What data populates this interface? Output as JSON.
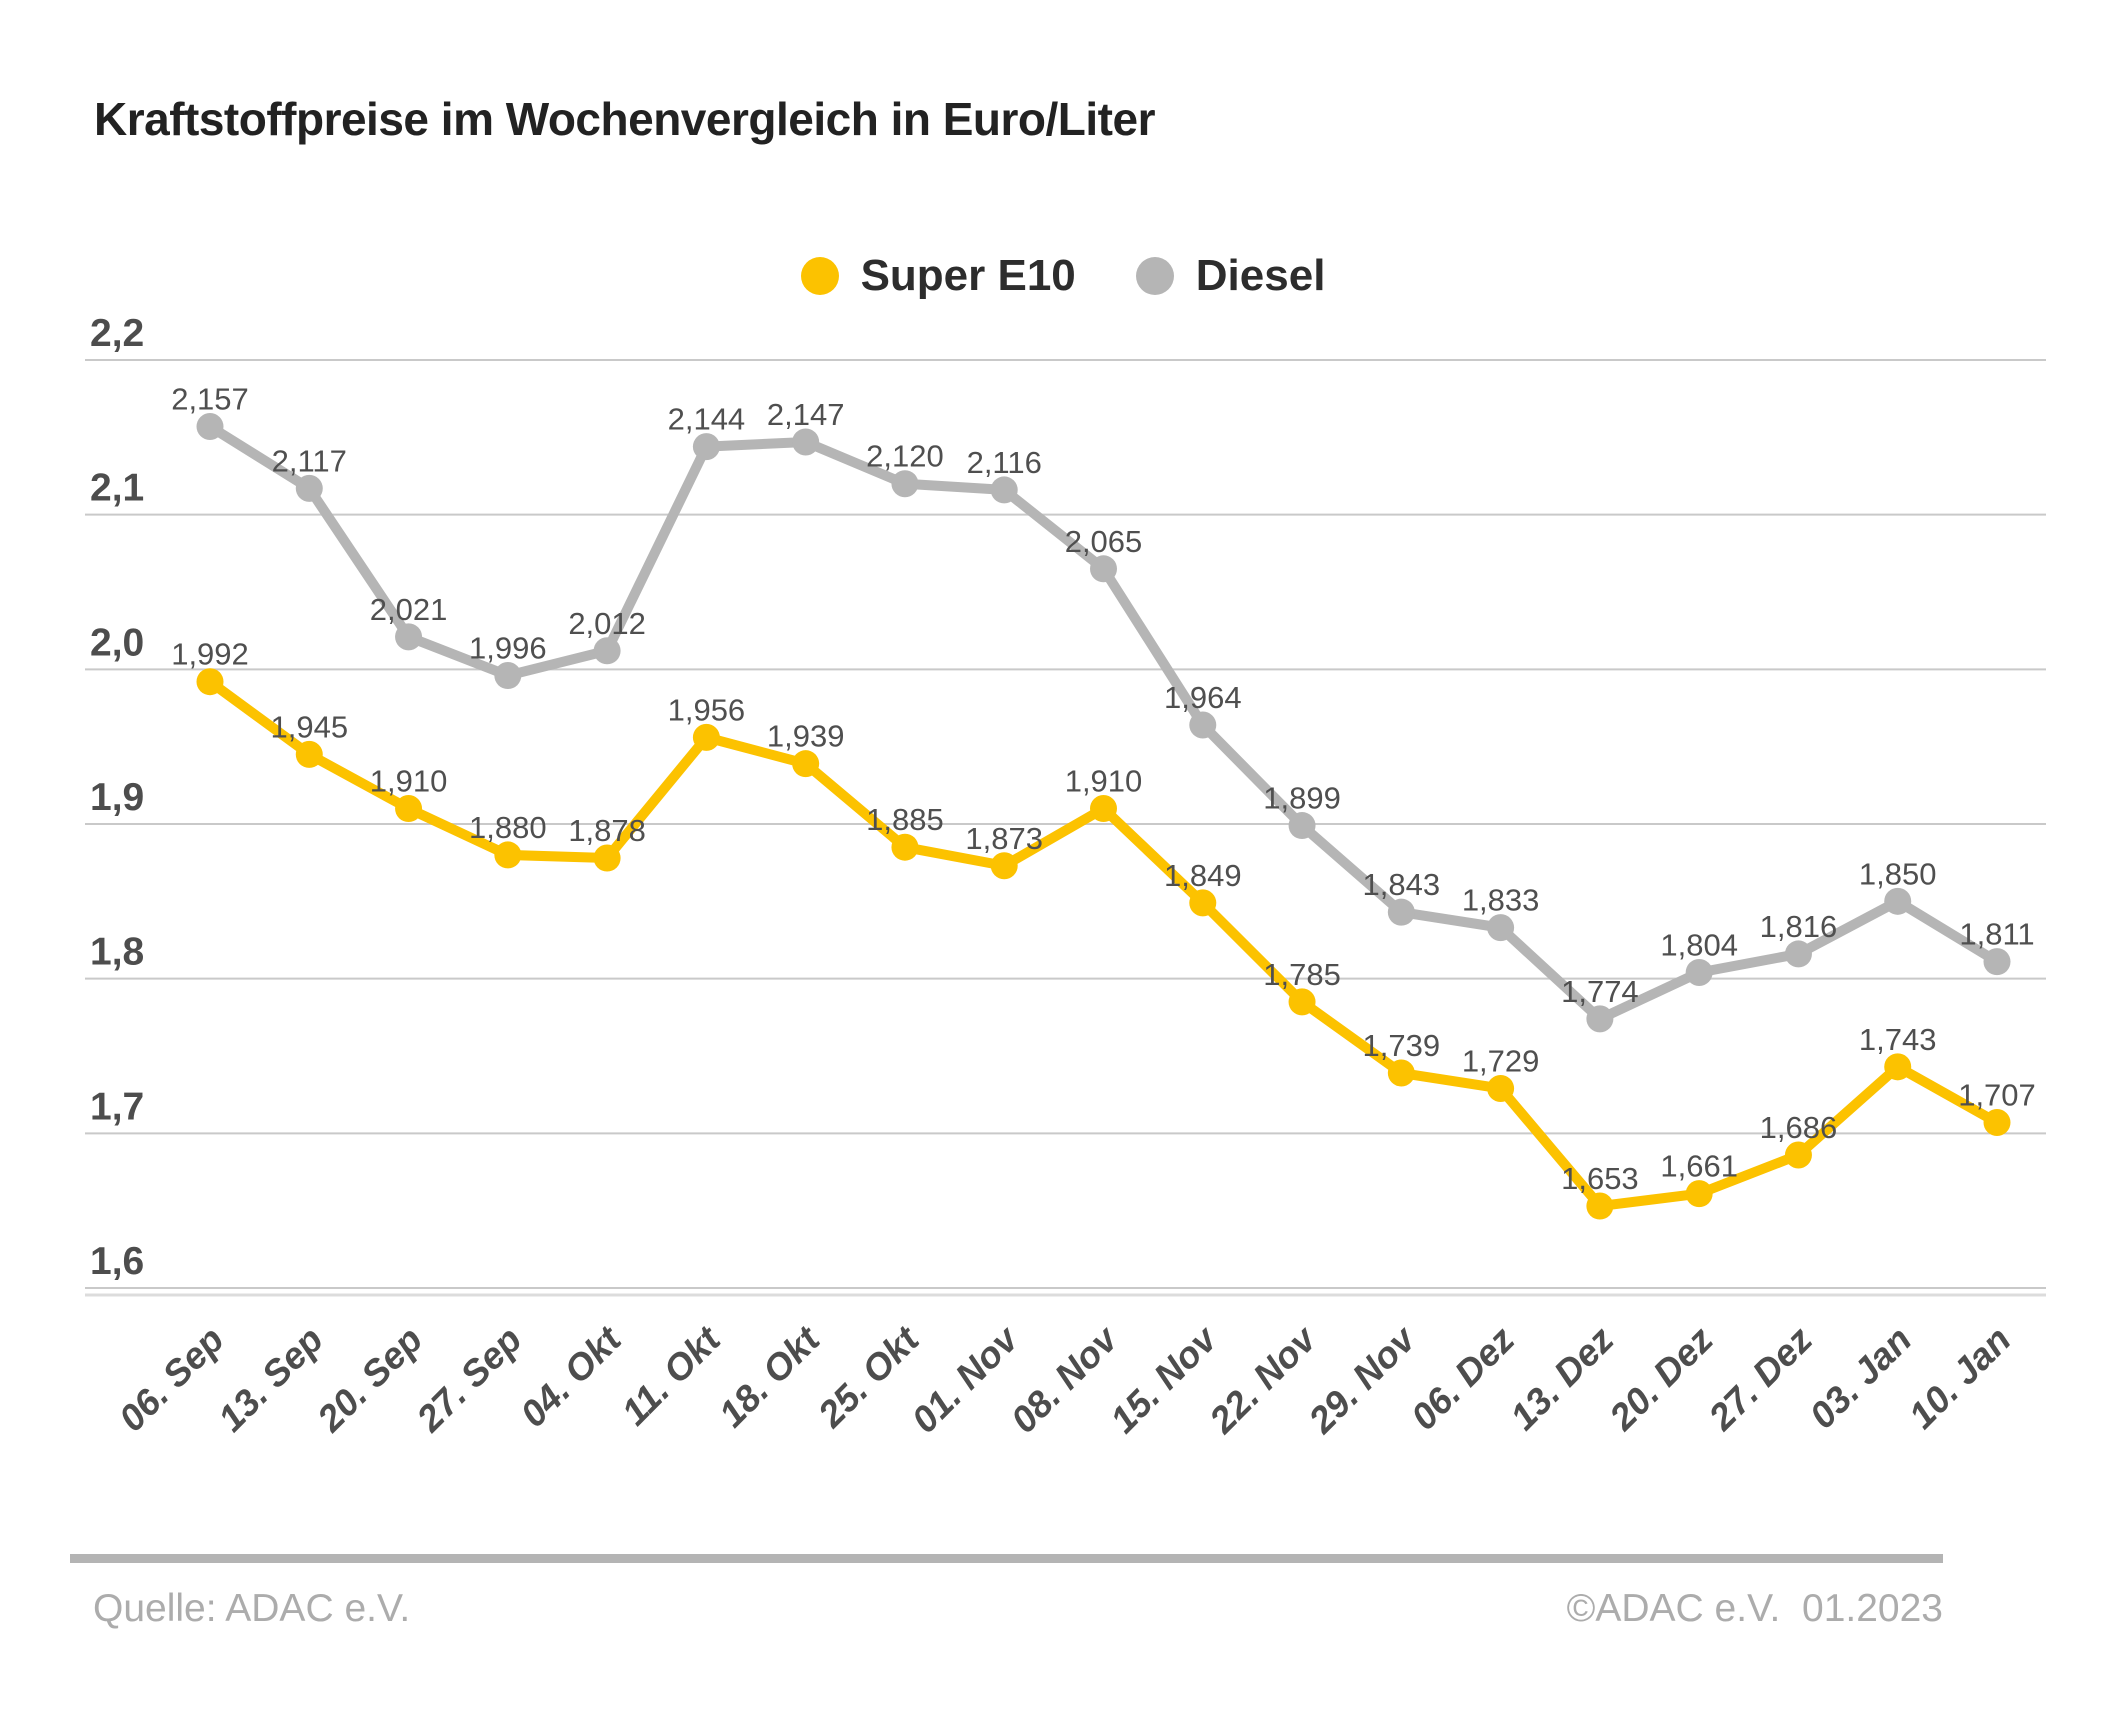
{
  "title": "Kraftstoffpreise im Wochenvergleich in Euro/Liter",
  "footer": {
    "source": "Quelle: ADAC e.V.",
    "copyright": "©ADAC e.V.  01.2023"
  },
  "colors": {
    "super_e10": "#FCC200",
    "diesel": "#B5B5B5",
    "gridline": "#C9C9C9",
    "label_text": "#4D4D4D",
    "footer_gray": "#ACACAC"
  },
  "chart_data": {
    "type": "line",
    "title": "Kraftstoffpreise im Wochenvergleich in Euro/Liter",
    "xlabel": "",
    "ylabel": "Euro/Liter",
    "ylim": [
      1.6,
      2.2
    ],
    "yticks": [
      2.2,
      2.1,
      2.0,
      1.9,
      1.8,
      1.7,
      1.6
    ],
    "grid": true,
    "legend_position": "top-center",
    "value_labels": true,
    "decimal_separator": ",",
    "categories": [
      "06. Sep",
      "13. Sep",
      "20. Sep",
      "27. Sep",
      "04. Okt",
      "11. Okt",
      "18. Okt",
      "25. Okt",
      "01. Nov",
      "08. Nov",
      "15. Nov",
      "22. Nov",
      "29. Nov",
      "06. Dez",
      "13. Dez",
      "20. Dez",
      "27. Dez",
      "03. Jan",
      "10. Jan"
    ],
    "series": [
      {
        "name": "Super E10",
        "color": "#FCC200",
        "values": [
          1.992,
          1.945,
          1.91,
          1.88,
          1.878,
          1.956,
          1.939,
          1.885,
          1.873,
          1.91,
          1.849,
          1.785,
          1.739,
          1.729,
          1.653,
          1.661,
          1.686,
          1.743,
          1.707
        ]
      },
      {
        "name": "Diesel",
        "color": "#B5B5B5",
        "values": [
          2.157,
          2.117,
          2.021,
          1.996,
          2.012,
          2.144,
          2.147,
          2.12,
          2.116,
          2.065,
          1.964,
          1.899,
          1.843,
          1.833,
          1.774,
          1.804,
          1.816,
          1.85,
          1.811
        ]
      }
    ]
  }
}
